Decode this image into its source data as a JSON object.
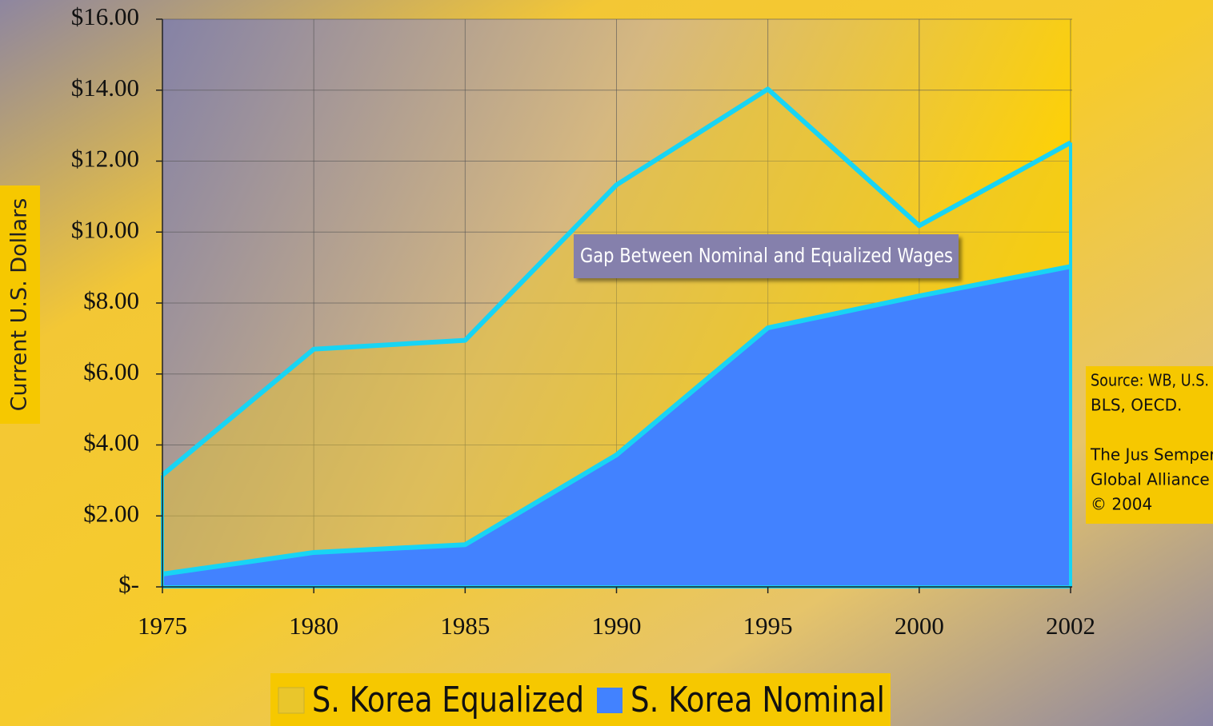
{
  "chart_data": {
    "type": "area",
    "y_label": "Current U.S. Dollars",
    "annotation": "Gap Between Nominal and Equalized Wages",
    "source": [
      "Source: WB, U.S.",
      "BLS, OECD."
    ],
    "credit": [
      "The Jus Semper",
      "Global Alliance",
      "© 2004"
    ],
    "categories": [
      "1975",
      "1980",
      "1985",
      "1990",
      "1995",
      "2000",
      "2002"
    ],
    "series": [
      {
        "name": "S. Korea Equalized",
        "color": "#e9c62c",
        "line_color": "#18d4f4",
        "values": [
          3.15,
          6.7,
          6.95,
          11.33,
          14.03,
          10.18,
          12.52
        ]
      },
      {
        "name": "S. Korea Nominal",
        "color": "#4282ff",
        "line_color": "#18d4f4",
        "values": [
          0.36,
          0.97,
          1.19,
          3.72,
          7.3,
          8.2,
          9.03
        ]
      }
    ],
    "ylim": [
      0,
      16
    ],
    "yticks": [
      {
        "value": 0,
        "label": "$-"
      },
      {
        "value": 2,
        "label": "$2.00"
      },
      {
        "value": 4,
        "label": "$4.00"
      },
      {
        "value": 6,
        "label": "$6.00"
      },
      {
        "value": 8,
        "label": "$8.00"
      },
      {
        "value": 10,
        "label": "$10.00"
      },
      {
        "value": 12,
        "label": "$12.00"
      },
      {
        "value": 14,
        "label": "$14.00"
      },
      {
        "value": 16,
        "label": "$16.00"
      }
    ],
    "grid": true
  }
}
